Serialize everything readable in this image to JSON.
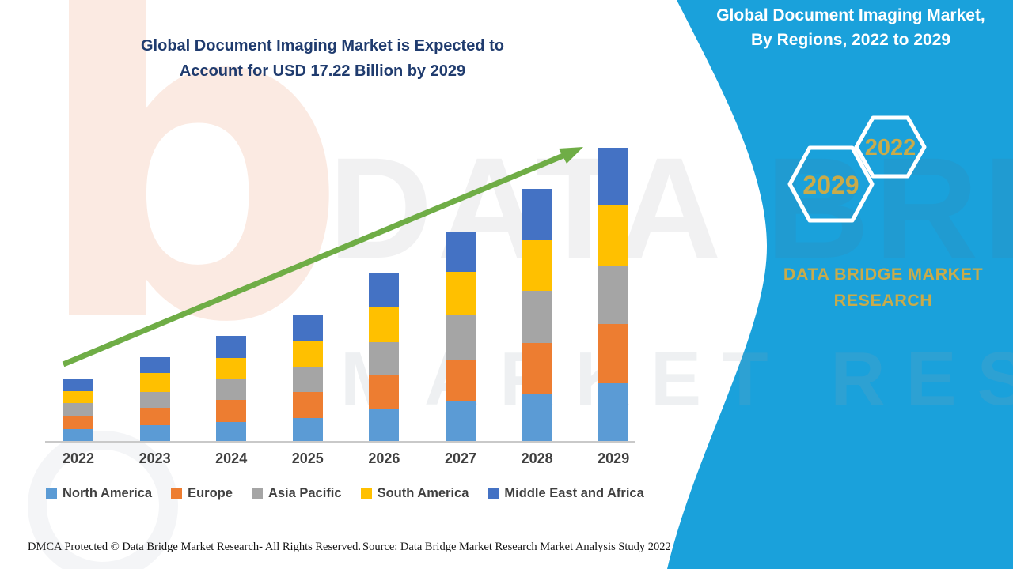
{
  "titles": {
    "left_line1": "Global Document Imaging Market is Expected to",
    "left_line2": "Account for USD 17.22 Billion by 2029",
    "right_line1": "Global Document Imaging Market,",
    "right_line2": "By Regions, 2022 to 2029"
  },
  "brand": {
    "name_line1": "DATA BRIDGE MARKET",
    "name_line2": "RESEARCH",
    "hexagon_back_label": "2022",
    "hexagon_front_label": "2029"
  },
  "watermark": {
    "logo_letter": "b",
    "big_text": "DATA BRIDGE",
    "sub_text": "MARKET RESEARCH"
  },
  "footer": {
    "left": "DMCA Protected © Data Bridge Market Research- All Rights Reserved.",
    "right": "Source: Data Bridge Market Research Market Analysis Study 2022"
  },
  "colors": {
    "teal_panel": "#1aa1db",
    "title_navy": "#1f3b6e",
    "arrow_green": "#6fad46",
    "brand_gold": "#c9ab4a",
    "axis_label_gray": "#3f3f3f"
  },
  "chart_data": {
    "type": "bar",
    "stacked": true,
    "title": "Global Document Imaging Market is Expected to Account for USD 17.22 Billion by 2029",
    "unit": "USD Billion",
    "categories": [
      "2022",
      "2023",
      "2024",
      "2025",
      "2026",
      "2027",
      "2028",
      "2029"
    ],
    "series": [
      {
        "name": "North America",
        "color": "#5b9bd5",
        "values": [
          0.74,
          0.97,
          1.16,
          1.39,
          1.9,
          2.36,
          2.82,
          3.43
        ]
      },
      {
        "name": "Europe",
        "color": "#ed7d31",
        "values": [
          0.74,
          1.02,
          1.3,
          1.53,
          1.99,
          2.41,
          2.96,
          3.47
        ]
      },
      {
        "name": "Asia Pacific",
        "color": "#a5a5a5",
        "values": [
          0.79,
          0.93,
          1.25,
          1.48,
          1.94,
          2.64,
          3.06,
          3.43
        ]
      },
      {
        "name": "South America",
        "color": "#ffc000",
        "values": [
          0.69,
          1.11,
          1.2,
          1.48,
          2.08,
          2.55,
          2.96,
          3.52
        ]
      },
      {
        "name": "Middle East and Africa",
        "color": "#4472c4",
        "values": [
          0.74,
          0.93,
          1.3,
          1.53,
          1.99,
          2.36,
          3.01,
          3.37
        ]
      }
    ],
    "totals_estimated": [
      3.7,
      4.96,
      6.21,
      7.41,
      9.9,
      12.32,
      14.81,
      17.22
    ],
    "highlight_value_2029": "USD 17.22 Billion",
    "legend_position": "bottom",
    "gridlines": false,
    "trend_arrow": true
  }
}
